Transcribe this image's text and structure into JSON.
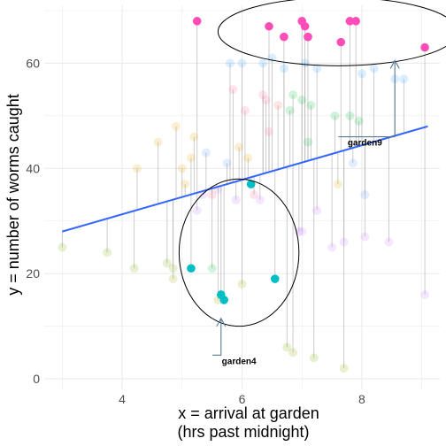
{
  "chart_data": {
    "type": "scatter",
    "title": "",
    "xlabel_line1": "x = arrival at garden",
    "xlabel_line2": "(hrs past midnight)",
    "ylabel": "y = number of worms caught",
    "xlim": [
      2.7,
      9.3
    ],
    "ylim": [
      -2,
      71
    ],
    "x_ticks": [
      4,
      6,
      8
    ],
    "y_ticks": [
      0,
      20,
      40,
      60
    ],
    "grid": true,
    "legend": "none",
    "regression_line": {
      "x": [
        3.0,
        9.1
      ],
      "y": [
        28,
        48
      ],
      "color": "#3366FF"
    },
    "colors": {
      "garden4": "#00BFC4",
      "garden9": "#FF4DB8",
      "line": "#3366FF",
      "segment": "#b3b3b3",
      "annotation": "#5a7a96",
      "grid": "#ebebeb"
    },
    "highlight_series": [
      {
        "name": "garden4",
        "color": "#00BFC4",
        "points": [
          {
            "x": 5.15,
            "y": 21
          },
          {
            "x": 5.65,
            "y": 16
          },
          {
            "x": 5.7,
            "y": 15
          },
          {
            "x": 6.15,
            "y": 37
          },
          {
            "x": 6.55,
            "y": 19
          }
        ]
      },
      {
        "name": "garden9",
        "color": "#FF4DB8",
        "points": [
          {
            "x": 5.25,
            "y": 68
          },
          {
            "x": 6.45,
            "y": 67
          },
          {
            "x": 6.7,
            "y": 65
          },
          {
            "x": 7.0,
            "y": 68
          },
          {
            "x": 7.05,
            "y": 67
          },
          {
            "x": 7.1,
            "y": 65
          },
          {
            "x": 7.65,
            "y": 64
          },
          {
            "x": 7.8,
            "y": 68
          },
          {
            "x": 7.9,
            "y": 68
          },
          {
            "x": 9.05,
            "y": 63
          }
        ]
      }
    ],
    "faded_points": [
      {
        "x": 3.0,
        "y": 25,
        "color": "#7CAE00"
      },
      {
        "x": 3.75,
        "y": 24,
        "color": "#7CAE00"
      },
      {
        "x": 4.2,
        "y": 21,
        "color": "#7CAE00"
      },
      {
        "x": 4.25,
        "y": 40,
        "color": "#E7A500"
      },
      {
        "x": 4.6,
        "y": 45,
        "color": "#E7A500"
      },
      {
        "x": 4.75,
        "y": 22,
        "color": "#7CAE00"
      },
      {
        "x": 4.85,
        "y": 21,
        "color": "#7CAE00"
      },
      {
        "x": 4.85,
        "y": 19,
        "color": "#A3A500"
      },
      {
        "x": 4.9,
        "y": 48,
        "color": "#E7A500"
      },
      {
        "x": 5.0,
        "y": 40,
        "color": "#E7A500"
      },
      {
        "x": 5.05,
        "y": 37,
        "color": "#E7A500"
      },
      {
        "x": 5.15,
        "y": 42,
        "color": "#E7A500"
      },
      {
        "x": 5.2,
        "y": 46,
        "color": "#E7A500"
      },
      {
        "x": 5.25,
        "y": 32,
        "color": "#C77CFF"
      },
      {
        "x": 5.35,
        "y": 35,
        "color": "#C77CFF"
      },
      {
        "x": 5.4,
        "y": 43,
        "color": "#619CFF"
      },
      {
        "x": 5.5,
        "y": 21,
        "color": "#00BA38"
      },
      {
        "x": 5.5,
        "y": 35,
        "color": "#FF6C91"
      },
      {
        "x": 5.6,
        "y": 36,
        "color": "#C77CFF"
      },
      {
        "x": 5.6,
        "y": 15,
        "color": "#A3A500"
      },
      {
        "x": 5.75,
        "y": 41,
        "color": "#619CFF"
      },
      {
        "x": 5.8,
        "y": 60,
        "color": "#35A2FF"
      },
      {
        "x": 5.85,
        "y": 55,
        "color": "#FF6C91"
      },
      {
        "x": 5.9,
        "y": 34,
        "color": "#C77CFF"
      },
      {
        "x": 5.95,
        "y": 44,
        "color": "#E7A500"
      },
      {
        "x": 6.0,
        "y": 60,
        "color": "#35A2FF"
      },
      {
        "x": 6.0,
        "y": 18,
        "color": "#A3A500"
      },
      {
        "x": 6.05,
        "y": 51,
        "color": "#FF6C91"
      },
      {
        "x": 6.1,
        "y": 42,
        "color": "#E7A500"
      },
      {
        "x": 6.2,
        "y": 35,
        "color": "#FF6C91"
      },
      {
        "x": 6.3,
        "y": 34,
        "color": "#C77CFF"
      },
      {
        "x": 6.35,
        "y": 60,
        "color": "#35A2FF"
      },
      {
        "x": 6.35,
        "y": 54,
        "color": "#FF6C91"
      },
      {
        "x": 6.4,
        "y": 53,
        "color": "#FF6C91"
      },
      {
        "x": 6.45,
        "y": 47,
        "color": "#FF6C91"
      },
      {
        "x": 6.5,
        "y": 61,
        "color": "#35A2FF"
      },
      {
        "x": 6.6,
        "y": 52,
        "color": "#F8766D"
      },
      {
        "x": 6.7,
        "y": 59,
        "color": "#35A2FF"
      },
      {
        "x": 6.75,
        "y": 6,
        "color": "#7CAE00"
      },
      {
        "x": 6.8,
        "y": 51,
        "color": "#00BA38"
      },
      {
        "x": 6.85,
        "y": 54,
        "color": "#00BA38"
      },
      {
        "x": 6.85,
        "y": 5,
        "color": "#A3A500"
      },
      {
        "x": 6.95,
        "y": 28,
        "color": "#C77CFF"
      },
      {
        "x": 7.0,
        "y": 53,
        "color": "#00BA38"
      },
      {
        "x": 7.0,
        "y": 28,
        "color": "#C77CFF"
      },
      {
        "x": 7.05,
        "y": 60,
        "color": "#35A2FF"
      },
      {
        "x": 7.1,
        "y": 45,
        "color": "#00BA38"
      },
      {
        "x": 7.15,
        "y": 52,
        "color": "#00BA38"
      },
      {
        "x": 7.2,
        "y": 4,
        "color": "#7CAE00"
      },
      {
        "x": 7.25,
        "y": 59,
        "color": "#35A2FF"
      },
      {
        "x": 7.25,
        "y": 32,
        "color": "#C77CFF"
      },
      {
        "x": 7.5,
        "y": 25,
        "color": "#C77CFF"
      },
      {
        "x": 7.55,
        "y": 50,
        "color": "#00BA38"
      },
      {
        "x": 7.6,
        "y": 37,
        "color": "#E7A500"
      },
      {
        "x": 7.7,
        "y": 26,
        "color": "#C77CFF"
      },
      {
        "x": 7.7,
        "y": 2,
        "color": "#A3A500"
      },
      {
        "x": 7.8,
        "y": 50,
        "color": "#00BA38"
      },
      {
        "x": 7.85,
        "y": 41,
        "color": "#619CFF"
      },
      {
        "x": 7.95,
        "y": 49,
        "color": "#00BA38"
      },
      {
        "x": 8.0,
        "y": 58,
        "color": "#35A2FF"
      },
      {
        "x": 8.05,
        "y": 35,
        "color": "#619CFF"
      },
      {
        "x": 8.05,
        "y": 27,
        "color": "#C77CFF"
      },
      {
        "x": 8.2,
        "y": 59,
        "color": "#35A2FF"
      },
      {
        "x": 8.45,
        "y": 26,
        "color": "#C77CFF"
      },
      {
        "x": 8.55,
        "y": 57,
        "color": "#35A2FF"
      },
      {
        "x": 8.7,
        "y": 57,
        "color": "#35A2FF"
      },
      {
        "x": 9.05,
        "y": 16,
        "color": "#C77CFF"
      }
    ],
    "annotations": [
      {
        "label": "garden4",
        "ellipse": {
          "cx": 5.95,
          "cy": 24,
          "rx": 1.0,
          "ry": 14
        },
        "arrow_tip": {
          "x": 5.65,
          "y": 11.5
        },
        "label_pos": {
          "x": 5.95,
          "y": 3.5
        }
      },
      {
        "label": "garden9",
        "ellipse": {
          "cx": 7.6,
          "cy": 66,
          "rx": 2.0,
          "ry": 6.5
        },
        "arrow_tip": {
          "x": 8.55,
          "y": 60.5
        },
        "label_pos": {
          "x": 8.05,
          "y": 45.0
        }
      }
    ]
  }
}
